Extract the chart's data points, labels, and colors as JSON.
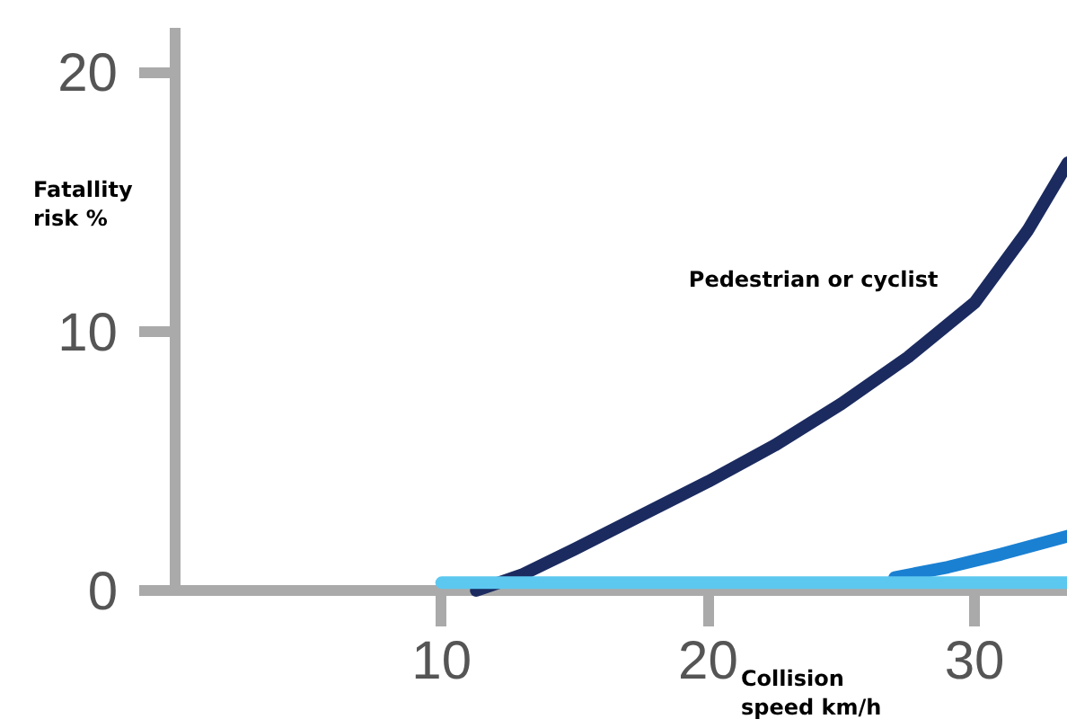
{
  "chart_data": {
    "type": "line",
    "xlabel": "Collision speed km/h",
    "ylabel": "Fatallity risk %",
    "xlim": [
      0,
      33.5
    ],
    "ylim": [
      0,
      21.7
    ],
    "xticks": [
      10,
      20,
      30
    ],
    "yticks": [
      0,
      10,
      20
    ],
    "grid": false,
    "legend": false,
    "marker": "none",
    "line_style": "solid",
    "series": [
      {
        "name": "Pedestrian or cyclist",
        "color": "#1b2b60",
        "x": [
          11.3,
          13,
          15,
          17.5,
          20,
          22.5,
          25,
          27.5,
          30,
          32,
          33.5
        ],
        "values": [
          0,
          0.6,
          1.6,
          2.9,
          4.2,
          5.6,
          7.2,
          9,
          11.1,
          13.9,
          16.5
        ]
      },
      {
        "color": "#1a80d2",
        "x": [
          27,
          29,
          31,
          33.5
        ],
        "values": [
          0.5,
          0.9,
          1.4,
          2.1
        ]
      },
      {
        "color": "#5cc8f0",
        "x": [
          10,
          15,
          20,
          25,
          30,
          33.5
        ],
        "values": [
          0.3,
          0.3,
          0.3,
          0.3,
          0.3,
          0.3
        ]
      }
    ]
  }
}
